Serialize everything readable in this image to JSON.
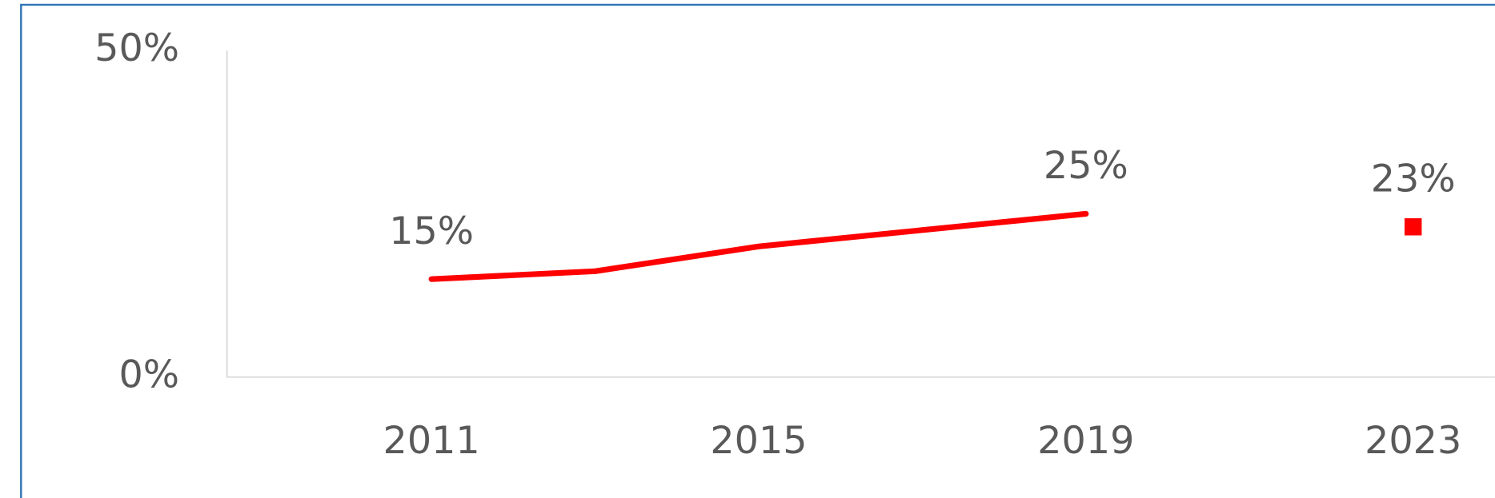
{
  "chart_data": {
    "type": "line",
    "series": [
      {
        "color": "#ff0000",
        "marker": "none",
        "x": [
          2011,
          2013,
          2015,
          2017,
          2019
        ],
        "values": [
          15,
          16.2,
          20,
          22.5,
          25
        ],
        "value_labels": [
          "15%",
          null,
          null,
          null,
          "25%"
        ]
      },
      {
        "color": "#ff0000",
        "marker": "square",
        "x": [
          2023
        ],
        "values": [
          23
        ],
        "value_labels": [
          "23%"
        ]
      }
    ],
    "xlim": [
      2008.5,
      2024
    ],
    "xticks": [
      2011,
      2015,
      2019,
      2023
    ],
    "ylim": [
      0,
      50
    ],
    "yticks": [
      {
        "value": 0,
        "label": "0%"
      },
      {
        "value": 50,
        "label": "50%"
      }
    ],
    "grid": false
  }
}
